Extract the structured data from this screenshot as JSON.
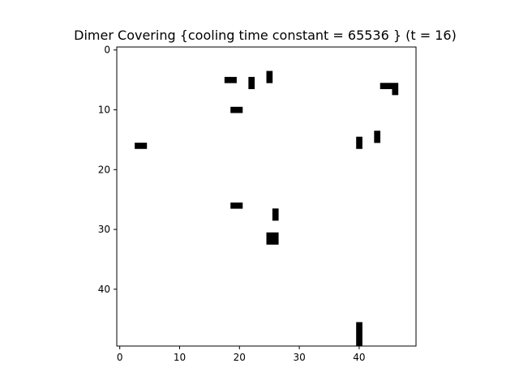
{
  "chart_data": {
    "type": "heatmap",
    "title": "Dimer Covering {cooling time constant = 65536 } (t = 16)",
    "grid_size": 50,
    "xlim": [
      -0.5,
      49.5
    ],
    "ylim": [
      49.5,
      -0.5
    ],
    "xticks": [
      0,
      10,
      20,
      30,
      40
    ],
    "yticks": [
      0,
      10,
      20,
      30,
      40
    ],
    "colors": {
      "empty": "#ffffff",
      "filled": "#000000"
    },
    "grid": false,
    "filled_cells": [
      [
        18,
        5
      ],
      [
        19,
        5
      ],
      [
        22,
        5
      ],
      [
        22,
        6
      ],
      [
        25,
        4
      ],
      [
        25,
        5
      ],
      [
        44,
        6
      ],
      [
        45,
        6
      ],
      [
        46,
        6
      ],
      [
        46,
        7
      ],
      [
        19,
        10
      ],
      [
        20,
        10
      ],
      [
        3,
        16
      ],
      [
        4,
        16
      ],
      [
        40,
        15
      ],
      [
        40,
        16
      ],
      [
        43,
        14
      ],
      [
        43,
        15
      ],
      [
        19,
        26
      ],
      [
        20,
        26
      ],
      [
        26,
        27
      ],
      [
        26,
        28
      ],
      [
        25,
        31
      ],
      [
        26,
        31
      ],
      [
        25,
        32
      ],
      [
        26,
        32
      ],
      [
        40,
        46
      ],
      [
        40,
        47
      ],
      [
        40,
        48
      ],
      [
        40,
        49
      ]
    ]
  }
}
